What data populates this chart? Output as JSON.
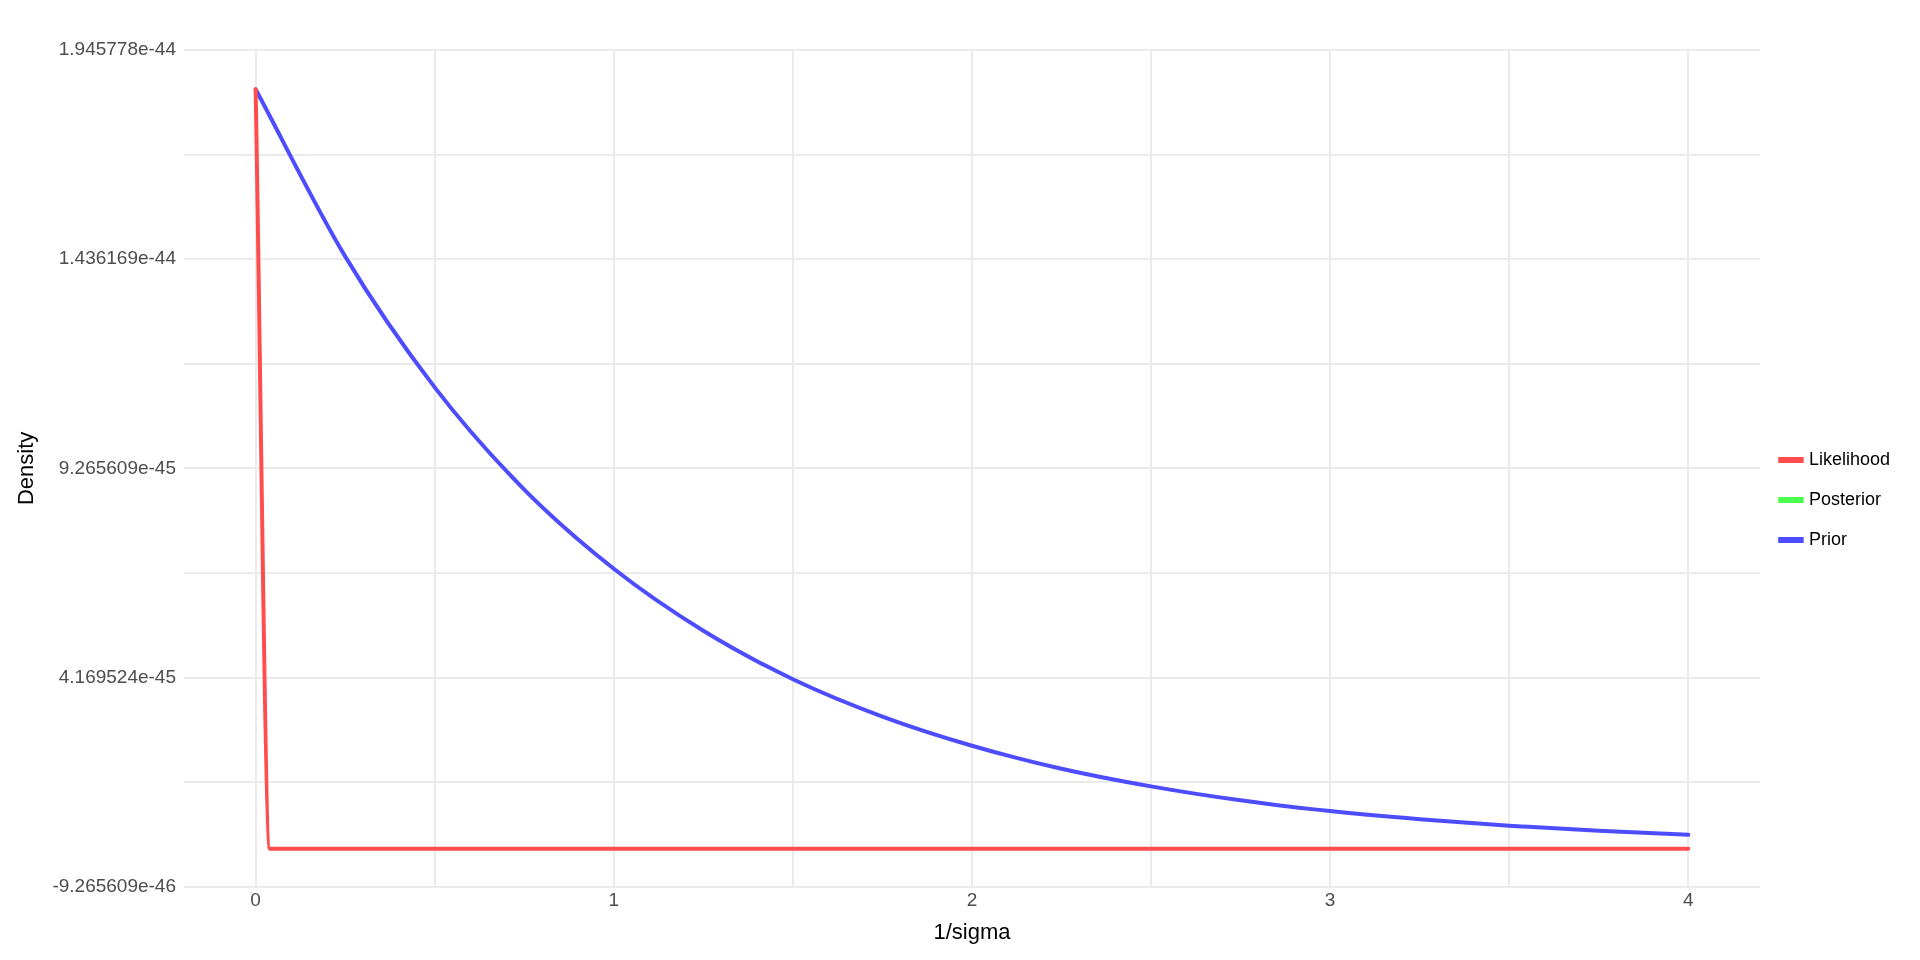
{
  "chart_data": {
    "type": "line",
    "xlabel": "1/sigma",
    "ylabel": "Density",
    "xlim": [
      -0.2,
      4.2
    ],
    "xticks": [
      0,
      {
        "value": 0.5,
        "label": null
      },
      1,
      {
        "value": 1.5,
        "label": null
      },
      2,
      {
        "value": 2.5,
        "label": null
      },
      3,
      {
        "value": 3.5,
        "label": null
      },
      4
    ],
    "ylim": [
      -9.265609e-46,
      1.945778e-44
    ],
    "yticks": [
      {
        "value": -9.265609e-46,
        "label": "-9.265609e-46"
      },
      {
        "value": 1.6214816e-45,
        "label": null
      },
      {
        "value": 4.169524e-45,
        "label": "4.169524e-45"
      },
      {
        "value": 6.7175665e-45,
        "label": null
      },
      {
        "value": 9.265609e-45,
        "label": "9.265609e-45"
      },
      {
        "value": 1.18136495e-44,
        "label": null
      },
      {
        "value": 1.436169e-44,
        "label": "1.436169e-44"
      },
      {
        "value": 1.69097345e-44,
        "label": null
      },
      {
        "value": 1.945778e-44,
        "label": "1.945778e-44"
      }
    ],
    "grid": true,
    "legend": "right",
    "marker": "none",
    "line_style": "solid",
    "series": [
      {
        "name": "Likelihood",
        "color": "#ff4d4d",
        "x": [
          0,
          0.04,
          4
        ],
        "values": [
          1.85e-44,
          0,
          0
        ]
      },
      {
        "name": "Posterior",
        "color": "#4dff4d"
      },
      {
        "name": "Prior",
        "color": "#4d4dff",
        "x": [
          0,
          0.25,
          0.5,
          0.75,
          1,
          1.25,
          1.5,
          1.75,
          2,
          2.25,
          2.5,
          2.75,
          3,
          3.25,
          3.5,
          3.75,
          4
        ],
        "values": [
          1.85e-44,
          1.443e-44,
          1.124e-44,
          8.75e-45,
          6.82e-45,
          5.31e-45,
          4.13e-45,
          3.22e-45,
          2.51e-45,
          1.95e-45,
          1.52e-45,
          1.18e-45,
          9.2e-46,
          7.2e-46,
          5.6e-46,
          4.4e-46,
          3.4e-46
        ]
      }
    ]
  }
}
